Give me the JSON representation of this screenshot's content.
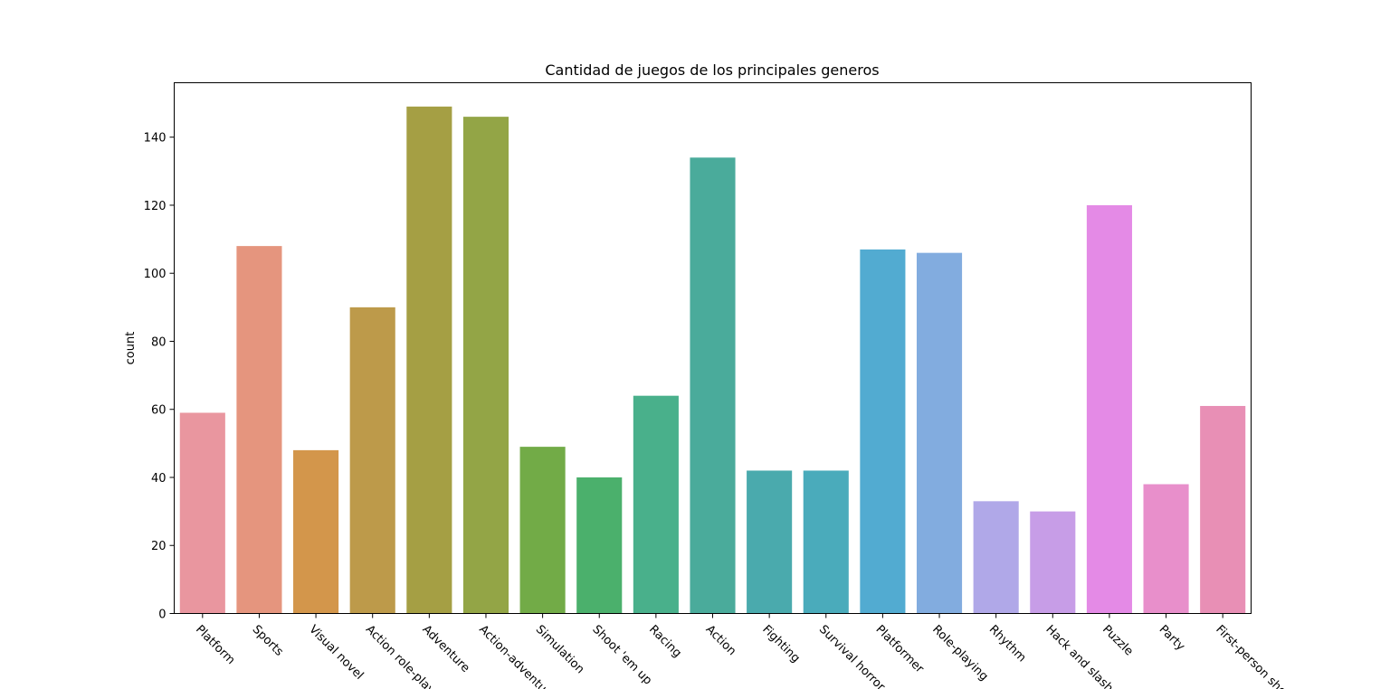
{
  "chart_data": {
    "type": "bar",
    "title": "Cantidad de juegos de los principales generos",
    "xlabel": "",
    "ylabel": "count",
    "ylim": [
      0,
      156
    ],
    "yticks": [
      0,
      20,
      40,
      60,
      80,
      100,
      120,
      140
    ],
    "grid": false,
    "categories": [
      "Platform",
      "Sports",
      "Visual novel",
      "Action role-playing",
      "Adventure",
      "Action-adventure",
      "Simulation",
      "Shoot 'em up",
      "Racing",
      "Action",
      "Fighting",
      "Survival horror",
      "Platformer",
      "Role-playing",
      "Rhythm",
      "Hack and slash",
      "Puzzle",
      "Party",
      "First-person shooter"
    ],
    "values": [
      59,
      108,
      48,
      90,
      149,
      146,
      49,
      40,
      64,
      134,
      42,
      42,
      107,
      106,
      33,
      30,
      120,
      38,
      61
    ],
    "colors": [
      "#e9969f",
      "#e5957e",
      "#d3964b",
      "#bd9a4a",
      "#a59f44",
      "#93a546",
      "#72ab47",
      "#4bb06c",
      "#49b08b",
      "#4aab9b",
      "#4aaaad",
      "#4aabbb",
      "#52abd1",
      "#82acdf",
      "#b0a8e8",
      "#c79de7",
      "#e48ae6",
      "#e88fcb",
      "#e88fb5"
    ]
  }
}
